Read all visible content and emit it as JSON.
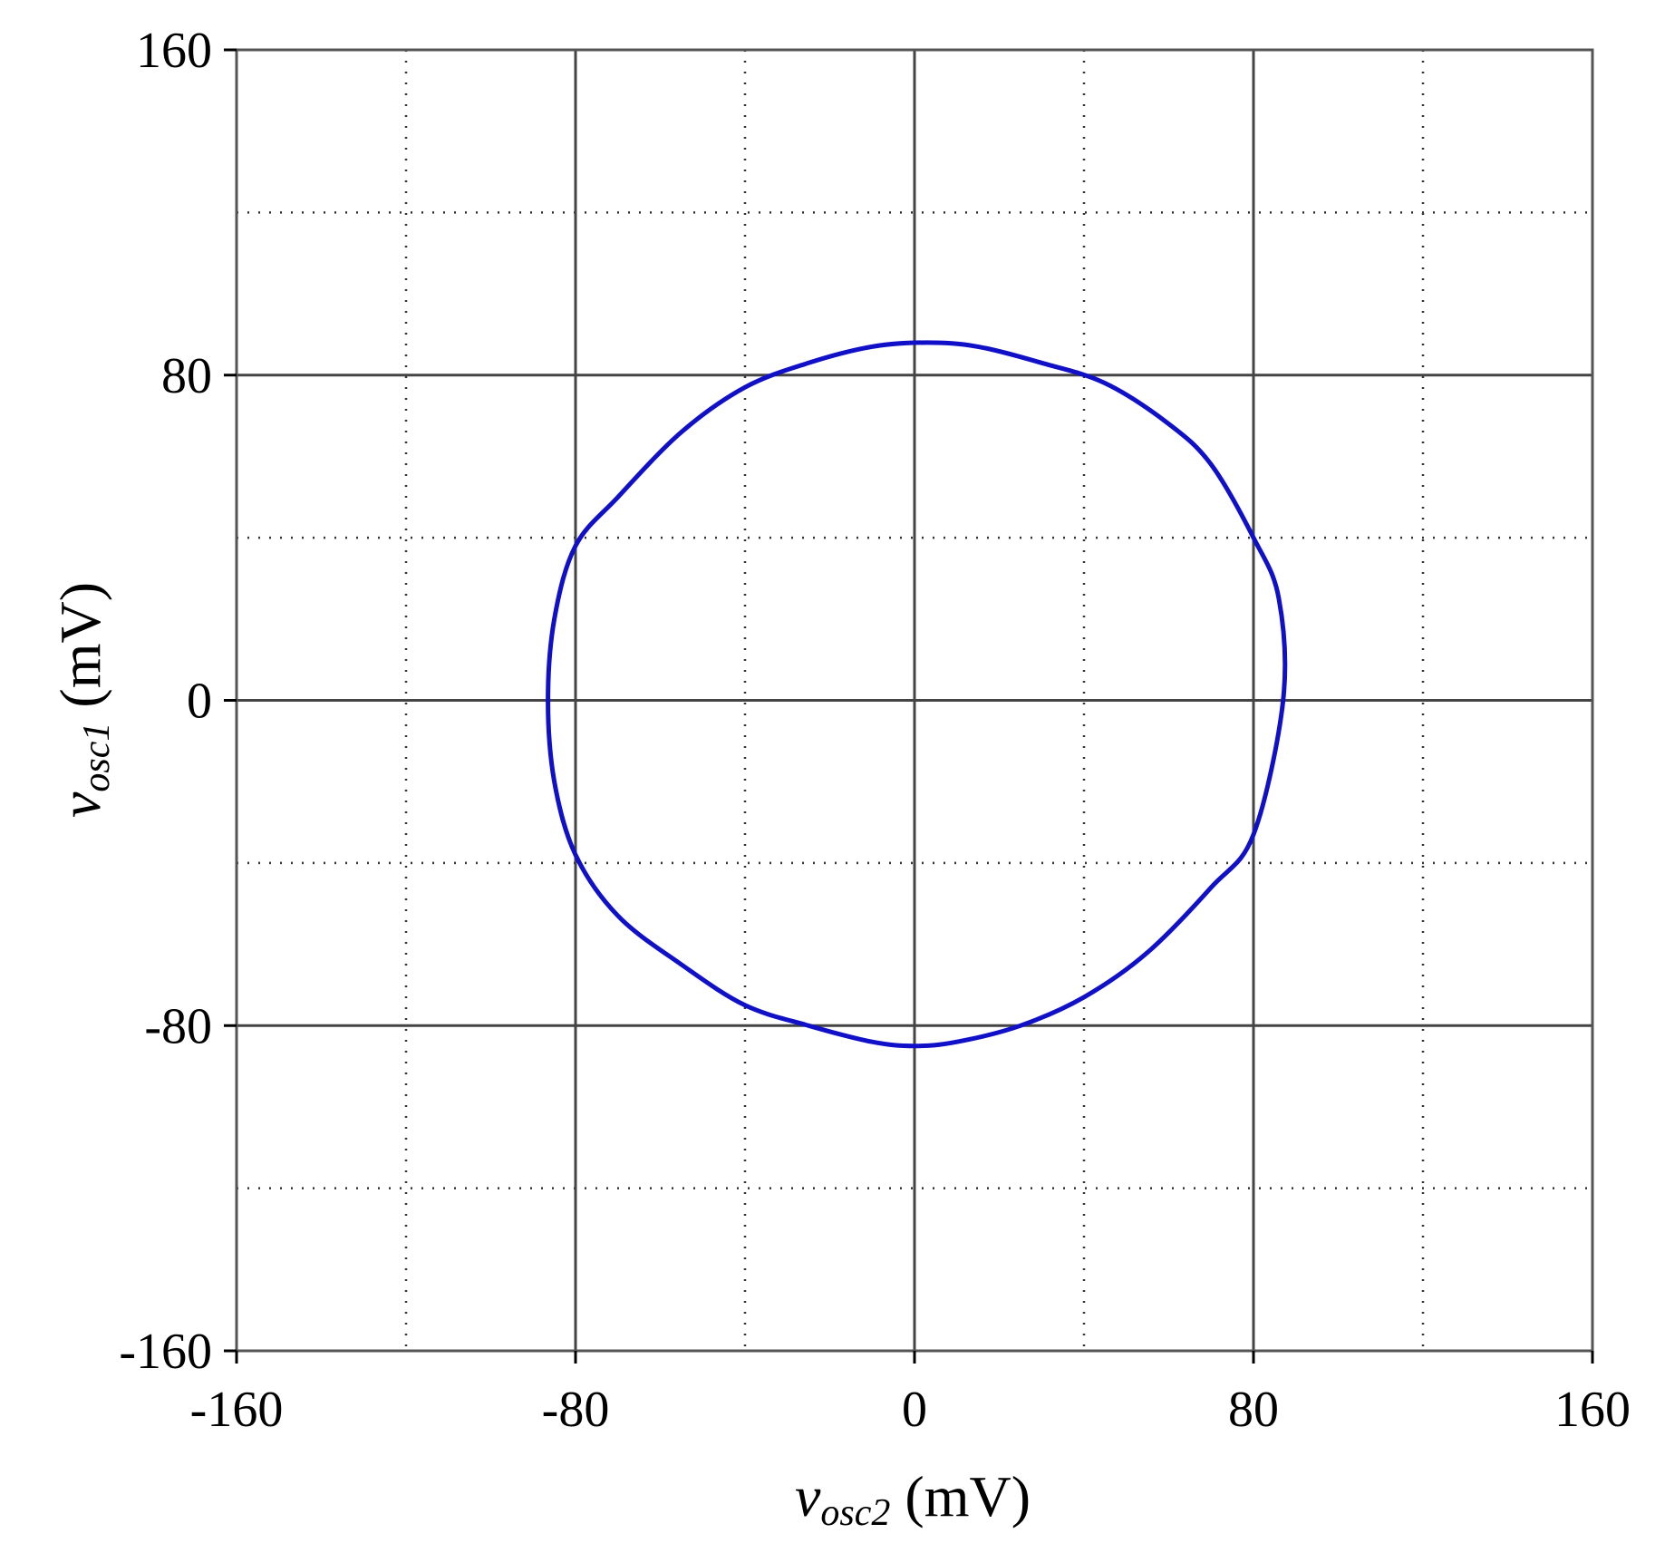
{
  "chart_data": {
    "type": "line",
    "title": "",
    "xlabel": {
      "var": "v",
      "sub": "osc2",
      "unit": " (mV)"
    },
    "ylabel": {
      "var": "v",
      "sub": "osc1",
      "unit": " (mV)"
    },
    "xlim": [
      -160,
      160
    ],
    "ylim": [
      -160,
      160
    ],
    "xticks": [
      -160,
      -80,
      0,
      80,
      160
    ],
    "yticks": [
      -160,
      -80,
      0,
      80,
      160
    ],
    "xtick_labels": [
      "-160",
      "-80",
      "0",
      "80",
      "160"
    ],
    "ytick_labels": [
      "-160",
      "-80",
      "0",
      "80",
      "160"
    ],
    "major_grid": [
      -80,
      0,
      80
    ],
    "minor_grid": [
      -120,
      -40,
      40,
      120
    ],
    "grid": true,
    "legend": "none",
    "series": [
      {
        "color": "#1010c8",
        "x": [
          87,
          86,
          80,
          70,
          60,
          45,
          30,
          15,
          3,
          -10,
          -25,
          -40,
          -55,
          -70,
          -80,
          -85,
          -86.5,
          -85,
          -80,
          -70,
          -55,
          -40,
          -25,
          -10,
          0,
          10,
          25,
          40,
          55,
          70,
          80,
          87
        ],
        "y": [
          0,
          25,
          40,
          58,
          68,
          78,
          83,
          87,
          88,
          87,
          83,
          77,
          66,
          50,
          38,
          20,
          0,
          -20,
          -38,
          -53,
          -65,
          -75,
          -80,
          -84,
          -85,
          -84,
          -80,
          -73,
          -62,
          -46,
          -33,
          0
        ]
      }
    ],
    "colors": {
      "frame": "#555555",
      "major_grid": "#444444",
      "minor_grid": "#333333"
    }
  }
}
